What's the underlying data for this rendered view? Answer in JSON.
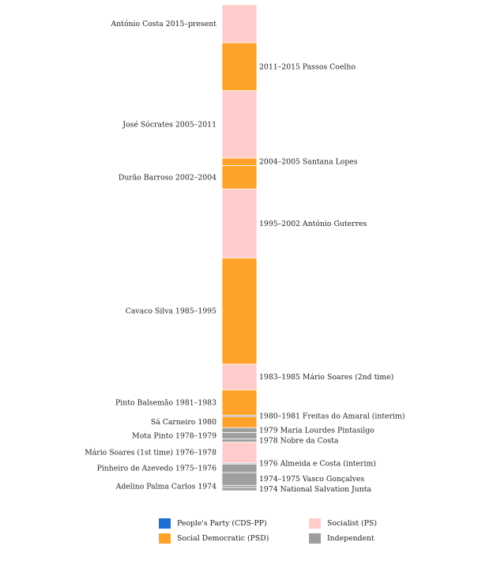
{
  "chart_data": {
    "type": "timeline",
    "title": "",
    "y_range": [
      1974.0,
      2019.5
    ],
    "legend": [
      {
        "label": "People's Party (CDS-PP)",
        "color": "#1f6fd1"
      },
      {
        "label": "Socialist (PS)",
        "color": "#ffcccc"
      },
      {
        "label": "Social Democratic (PSD)",
        "color": "#ffa229"
      },
      {
        "label": "Independent",
        "color": "#9e9e9e"
      }
    ],
    "terms": [
      {
        "label": "1974 National Salvation Junta",
        "start": 1974.0,
        "end": 1974.3,
        "party": "Independent",
        "side": "right"
      },
      {
        "label": "Adelino Palma Carlos 1974",
        "start": 1974.3,
        "end": 1974.5,
        "party": "Independent",
        "side": "left"
      },
      {
        "label": "1974–1975 Vasco Gonçalves",
        "start": 1974.5,
        "end": 1975.7,
        "party": "Independent",
        "side": "right"
      },
      {
        "label": "Pinheiro de Azevedo 1975–1976",
        "start": 1975.7,
        "end": 1976.5,
        "party": "Independent",
        "side": "left"
      },
      {
        "label": "1976 Almeida e Costa (interim)",
        "start": 1976.5,
        "end": 1976.6,
        "party": "Independent",
        "side": "right"
      },
      {
        "label": "Mário Soares (1st time) 1976–1978",
        "start": 1976.6,
        "end": 1978.55,
        "party": "Socialist (PS)",
        "side": "left"
      },
      {
        "label": "1978 Nobre da Costa",
        "start": 1978.55,
        "end": 1978.85,
        "party": "Independent",
        "side": "right"
      },
      {
        "label": "Mota Pinto 1978–1979",
        "start": 1978.85,
        "end": 1979.45,
        "party": "Independent",
        "side": "left"
      },
      {
        "label": "1979 Maria Lourdes Pintasilgo",
        "start": 1979.45,
        "end": 1979.9,
        "party": "Independent",
        "side": "right"
      },
      {
        "label": "Sá Carneiro 1980",
        "start": 1979.9,
        "end": 1980.95,
        "party": "Social Democratic (PSD)",
        "side": "left"
      },
      {
        "label": "1980–1981 Freitas do Amaral (interim)",
        "start": 1980.95,
        "end": 1981.05,
        "party": "People's Party (CDS-PP)",
        "side": "right"
      },
      {
        "label": "Pinto Balsemão 1981–1983",
        "start": 1981.05,
        "end": 1983.45,
        "party": "Social Democratic (PSD)",
        "side": "left"
      },
      {
        "label": "1983–1985 Mário Soares (2nd time)",
        "start": 1983.45,
        "end": 1985.85,
        "party": "Socialist (PS)",
        "side": "right"
      },
      {
        "label": "Cavaco Silva 1985–1995",
        "start": 1985.85,
        "end": 1995.8,
        "party": "Social Democratic (PSD)",
        "side": "left"
      },
      {
        "label": "1995–2002 António Guterres",
        "start": 1995.8,
        "end": 2002.25,
        "party": "Socialist (PS)",
        "side": "right"
      },
      {
        "label": "Durão Barroso 2002–2004",
        "start": 2002.25,
        "end": 2004.45,
        "party": "Social Democratic (PSD)",
        "side": "left"
      },
      {
        "label": "2004–2005 Santana Lopes",
        "start": 2004.45,
        "end": 2005.15,
        "party": "Social Democratic (PSD)",
        "side": "right"
      },
      {
        "label": "José Sócrates 2005–2011",
        "start": 2005.15,
        "end": 2011.45,
        "party": "Socialist (PS)",
        "side": "left"
      },
      {
        "label": "2011–2015 Passos Coelho",
        "start": 2011.45,
        "end": 2015.95,
        "party": "Social Democratic (PSD)",
        "side": "right"
      },
      {
        "label": "António Costa 2015–present",
        "start": 2015.95,
        "end": 2019.5,
        "party": "Socialist (PS)",
        "side": "left"
      }
    ]
  }
}
